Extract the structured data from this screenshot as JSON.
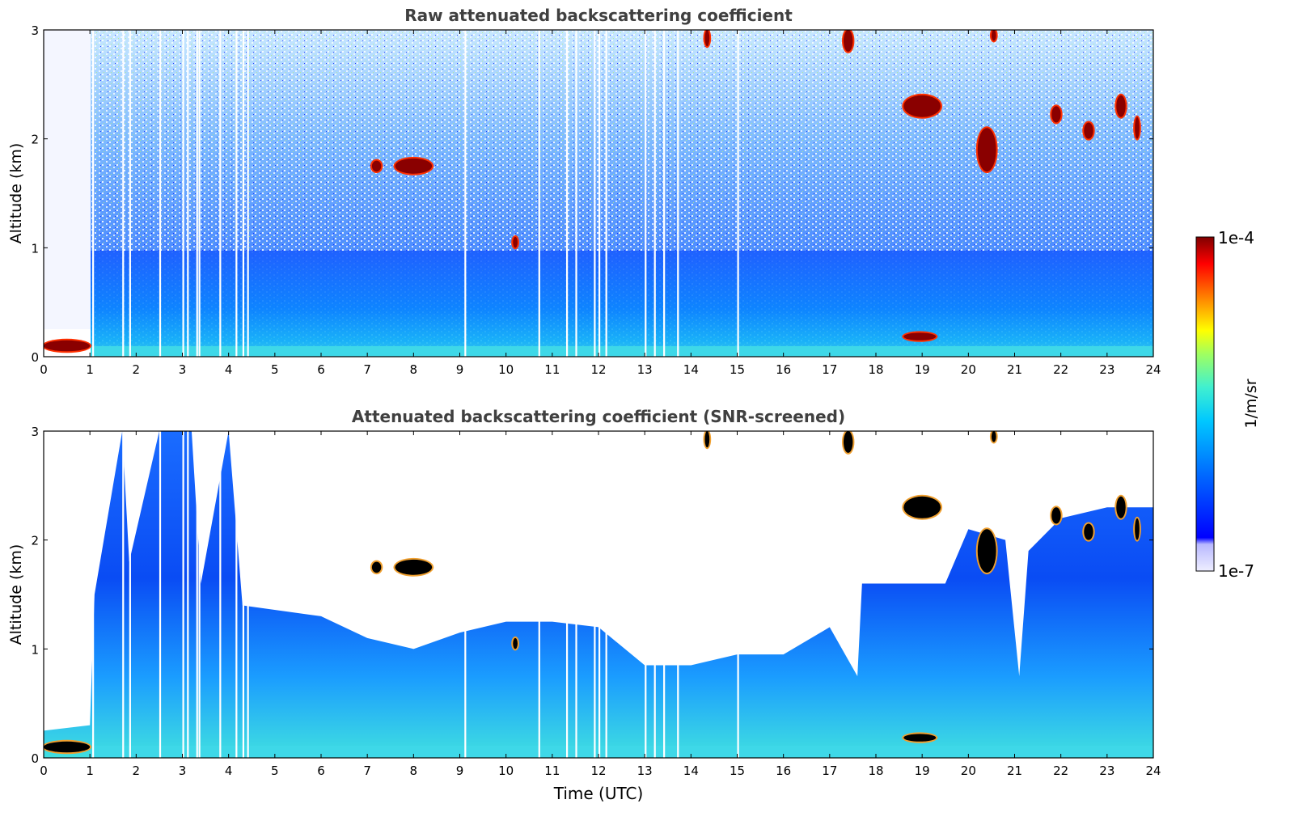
{
  "figure": {
    "colorbar": {
      "label": "1/m/sr",
      "max_label": "1e-4",
      "min_label": "1e-7",
      "range": [
        1e-07,
        0.0001
      ],
      "scale": "log",
      "colormap": "jet",
      "colors": [
        "#eaeaff",
        "#c8c8ff",
        "#0000ff",
        "#0060ff",
        "#00b8ff",
        "#20f0e0",
        "#80ff80",
        "#ffff00",
        "#ff9000",
        "#ff0000",
        "#800000"
      ]
    },
    "xlabel": "Time (UTC)"
  },
  "chart_data": [
    {
      "type": "heatmap",
      "title": "Raw attenuated backscattering coefficient",
      "xlabel": "",
      "ylabel": "Altitude (km)",
      "xlim": [
        0,
        24
      ],
      "ylim": [
        0,
        3
      ],
      "xticks": [
        "0",
        "1",
        "2",
        "3",
        "4",
        "5",
        "6",
        "7",
        "8",
        "9",
        "10",
        "11",
        "12",
        "13",
        "14",
        "15",
        "16",
        "17",
        "18",
        "19",
        "20",
        "21",
        "22",
        "23",
        "24"
      ],
      "yticks": [
        "0",
        "1",
        "2",
        "3"
      ],
      "missing_data_columns_utc": [
        1.05,
        1.7,
        1.85,
        2.5,
        3.0,
        3.1,
        3.3,
        3.35,
        3.8,
        4.15,
        4.3,
        4.4,
        9.1,
        10.7,
        11.3,
        11.5,
        11.9,
        12.0,
        12.15,
        13.0,
        13.2,
        13.4,
        13.7,
        15.0
      ],
      "features": [
        {
          "name": "near-surface layer",
          "t_start": 0,
          "t_end": 1.0,
          "alt_min": 0.05,
          "alt_max": 0.15,
          "level": "1e-4"
        },
        {
          "name": "boundary layer",
          "t_start": 1,
          "t_end": 24,
          "alt_min": 0,
          "alt_max": 1.0,
          "level": "~1e-6"
        },
        {
          "name": "cloud",
          "t_start": 7.1,
          "t_end": 7.3,
          "alt_min": 1.7,
          "alt_max": 1.8,
          "level": "1e-4"
        },
        {
          "name": "cloud",
          "t_start": 7.6,
          "t_end": 8.4,
          "alt_min": 1.68,
          "alt_max": 1.82,
          "level": "1e-4"
        },
        {
          "name": "cloud",
          "t_start": 10.15,
          "t_end": 10.25,
          "alt_min": 1.0,
          "alt_max": 1.1,
          "level": "1e-4"
        },
        {
          "name": "cloud",
          "t_start": 14.3,
          "t_end": 14.4,
          "alt_min": 2.85,
          "alt_max": 3.0,
          "level": "1e-4"
        },
        {
          "name": "cloud",
          "t_start": 17.3,
          "t_end": 17.5,
          "alt_min": 2.8,
          "alt_max": 3.0,
          "level": "1e-4"
        },
        {
          "name": "cloud",
          "t_start": 18.6,
          "t_end": 19.4,
          "alt_min": 2.2,
          "alt_max": 2.4,
          "level": "1e-4"
        },
        {
          "name": "aerosol layer",
          "t_start": 18.6,
          "t_end": 19.3,
          "alt_min": 0.15,
          "alt_max": 0.22,
          "level": "1e-4"
        },
        {
          "name": "cloud",
          "t_start": 20.2,
          "t_end": 20.6,
          "alt_min": 1.7,
          "alt_max": 2.1,
          "level": "1e-4"
        },
        {
          "name": "cloud",
          "t_start": 20.5,
          "t_end": 20.6,
          "alt_min": 2.9,
          "alt_max": 3.0,
          "level": "1e-4"
        },
        {
          "name": "cloud",
          "t_start": 21.8,
          "t_end": 22.0,
          "alt_min": 2.15,
          "alt_max": 2.3,
          "level": "1e-4"
        },
        {
          "name": "cloud",
          "t_start": 22.5,
          "t_end": 22.7,
          "alt_min": 2.0,
          "alt_max": 2.15,
          "level": "1e-4"
        },
        {
          "name": "cloud",
          "t_start": 23.2,
          "t_end": 23.4,
          "alt_min": 2.2,
          "alt_max": 2.4,
          "level": "1e-4"
        },
        {
          "name": "cloud",
          "t_start": 23.6,
          "t_end": 23.7,
          "alt_min": 2.0,
          "alt_max": 2.2,
          "level": "1e-4"
        }
      ]
    },
    {
      "type": "heatmap",
      "title": "Attenuated backscattering coefficient (SNR-screened)",
      "xlabel": "Time (UTC)",
      "ylabel": "Altitude (km)",
      "xlim": [
        0,
        24
      ],
      "ylim": [
        0,
        3
      ],
      "xticks": [
        "0",
        "1",
        "2",
        "3",
        "4",
        "5",
        "6",
        "7",
        "8",
        "9",
        "10",
        "11",
        "12",
        "13",
        "14",
        "15",
        "16",
        "17",
        "18",
        "19",
        "20",
        "21",
        "22",
        "23",
        "24"
      ],
      "yticks": [
        "0",
        "1",
        "2",
        "3"
      ],
      "screened_top_km": [
        [
          0,
          0.25
        ],
        [
          1.0,
          0.3
        ],
        [
          1.1,
          1.5
        ],
        [
          1.7,
          3.0
        ],
        [
          1.85,
          1.8
        ],
        [
          2.5,
          3.0
        ],
        [
          3.2,
          3.0
        ],
        [
          3.4,
          1.6
        ],
        [
          4.0,
          3.0
        ],
        [
          4.3,
          1.4
        ],
        [
          6,
          1.3
        ],
        [
          7,
          1.1
        ],
        [
          8,
          1.0
        ],
        [
          9,
          1.15
        ],
        [
          10,
          1.25
        ],
        [
          11,
          1.25
        ],
        [
          12,
          1.2
        ],
        [
          13,
          0.85
        ],
        [
          14,
          0.85
        ],
        [
          15,
          0.95
        ],
        [
          16,
          0.95
        ],
        [
          17,
          1.2
        ],
        [
          17.6,
          0.75
        ],
        [
          17.7,
          1.6
        ],
        [
          18.5,
          1.6
        ],
        [
          19.5,
          1.6
        ],
        [
          20,
          2.1
        ],
        [
          20.8,
          2.0
        ],
        [
          21.1,
          0.75
        ],
        [
          21.3,
          1.9
        ],
        [
          22,
          2.2
        ],
        [
          23,
          2.3
        ],
        [
          24,
          2.3
        ]
      ]
    }
  ]
}
